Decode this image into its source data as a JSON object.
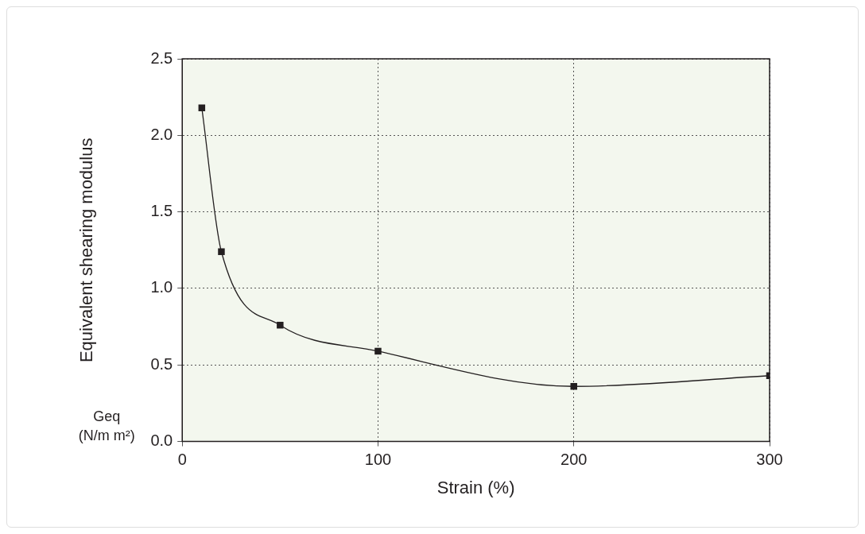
{
  "chart_data": {
    "type": "line",
    "xlabel": "Strain (%)",
    "ylabel": "Equivalent shearing modulus",
    "annotations": [
      "Geq",
      "(N/m m²)"
    ],
    "x": [
      10,
      20,
      50,
      100,
      200,
      300
    ],
    "series": [
      {
        "color": "#231f20",
        "values": [
          2.18,
          1.24,
          0.76,
          0.59,
          0.36,
          0.43
        ]
      }
    ],
    "xlim": [
      0,
      300
    ],
    "xticks": [
      0,
      100,
      200,
      300
    ],
    "ylim": [
      0,
      2.5
    ],
    "yticks": [
      {
        "value": 0,
        "label": "0.0"
      },
      {
        "value": 0.5,
        "label": "0.5"
      },
      {
        "value": 1,
        "label": "1.0"
      },
      {
        "value": 1.5,
        "label": "1.5"
      },
      {
        "value": 2,
        "label": "2.0"
      },
      {
        "value": 2.5,
        "label": "2.5"
      }
    ],
    "grid": true,
    "legend": false,
    "marker": "square",
    "line_style": "solid"
  }
}
